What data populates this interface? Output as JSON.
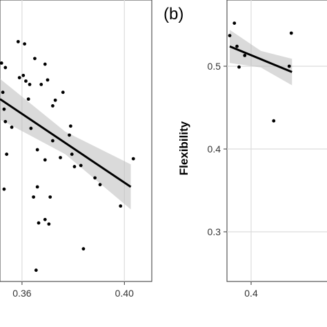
{
  "chart_data": [
    {
      "type": "scatter",
      "panel_label": "",
      "xlabel": "",
      "ylabel": "",
      "grid": true,
      "xlim": [
        0.3514,
        0.4107
      ],
      "ylim": [
        0.4,
        0.65
      ],
      "x_ticks": [
        {
          "value": 0.36,
          "label": "0.36"
        },
        {
          "value": 0.4,
          "label": "0.40"
        }
      ],
      "y_ticks": [],
      "points": [
        {
          "x": 0.352,
          "y": 0.594
        },
        {
          "x": 0.3525,
          "y": 0.568
        },
        {
          "x": 0.353,
          "y": 0.553
        },
        {
          "x": 0.3535,
          "y": 0.542
        },
        {
          "x": 0.3535,
          "y": 0.59
        },
        {
          "x": 0.354,
          "y": 0.513
        },
        {
          "x": 0.353,
          "y": 0.482
        },
        {
          "x": 0.356,
          "y": 0.537
        },
        {
          "x": 0.3585,
          "y": 0.613
        },
        {
          "x": 0.359,
          "y": 0.581
        },
        {
          "x": 0.3605,
          "y": 0.583
        },
        {
          "x": 0.361,
          "y": 0.611
        },
        {
          "x": 0.3615,
          "y": 0.578
        },
        {
          "x": 0.363,
          "y": 0.575
        },
        {
          "x": 0.365,
          "y": 0.598
        },
        {
          "x": 0.3675,
          "y": 0.575
        },
        {
          "x": 0.369,
          "y": 0.593
        },
        {
          "x": 0.37,
          "y": 0.579
        },
        {
          "x": 0.372,
          "y": 0.556
        },
        {
          "x": 0.3635,
          "y": 0.536
        },
        {
          "x": 0.3625,
          "y": 0.562
        },
        {
          "x": 0.366,
          "y": 0.517
        },
        {
          "x": 0.369,
          "y": 0.508
        },
        {
          "x": 0.366,
          "y": 0.484
        },
        {
          "x": 0.3645,
          "y": 0.475
        },
        {
          "x": 0.3665,
          "y": 0.452
        },
        {
          "x": 0.369,
          "y": 0.455
        },
        {
          "x": 0.3705,
          "y": 0.451
        },
        {
          "x": 0.371,
          "y": 0.475
        },
        {
          "x": 0.372,
          "y": 0.525
        },
        {
          "x": 0.375,
          "y": 0.51
        },
        {
          "x": 0.373,
          "y": 0.561
        },
        {
          "x": 0.376,
          "y": 0.568
        },
        {
          "x": 0.3785,
          "y": 0.53
        },
        {
          "x": 0.3795,
          "y": 0.513
        },
        {
          "x": 0.379,
          "y": 0.538
        },
        {
          "x": 0.3805,
          "y": 0.502
        },
        {
          "x": 0.383,
          "y": 0.503
        },
        {
          "x": 0.384,
          "y": 0.429
        },
        {
          "x": 0.3885,
          "y": 0.492
        },
        {
          "x": 0.3905,
          "y": 0.486
        },
        {
          "x": 0.3985,
          "y": 0.467
        },
        {
          "x": 0.4035,
          "y": 0.509
        },
        {
          "x": 0.3655,
          "y": 0.41
        }
      ],
      "fit": {
        "x_start": 0.3514,
        "x_end": 0.4025,
        "y_start": 0.562,
        "y_end": 0.484,
        "ci_start": 0.018,
        "ci_mid": 0.01,
        "ci_end": 0.02
      }
    },
    {
      "type": "scatter",
      "panel_label": "(b)",
      "xlabel": "",
      "ylabel": "Flexibility",
      "grid": true,
      "xlim": [
        0.386,
        0.45
      ],
      "ylim": [
        0.24,
        0.58
      ],
      "x_ticks": [
        {
          "value": 0.4,
          "label": "0.4"
        }
      ],
      "y_ticks": [
        {
          "value": 0.3,
          "label": "0.3"
        },
        {
          "value": 0.4,
          "label": "0.4"
        },
        {
          "value": 0.5,
          "label": "0.5"
        }
      ],
      "points": [
        {
          "x": 0.3876,
          "y": 0.537
        },
        {
          "x": 0.3903,
          "y": 0.552
        },
        {
          "x": 0.3918,
          "y": 0.524
        },
        {
          "x": 0.393,
          "y": 0.499
        },
        {
          "x": 0.3963,
          "y": 0.513
        },
        {
          "x": 0.4131,
          "y": 0.434
        },
        {
          "x": 0.4221,
          "y": 0.5
        },
        {
          "x": 0.4233,
          "y": 0.54
        }
      ],
      "fit": {
        "x_start": 0.3876,
        "x_end": 0.4237,
        "y_start": 0.524,
        "y_end": 0.493,
        "ci_start": 0.02,
        "ci_mid": 0.01,
        "ci_end": 0.016
      }
    }
  ]
}
